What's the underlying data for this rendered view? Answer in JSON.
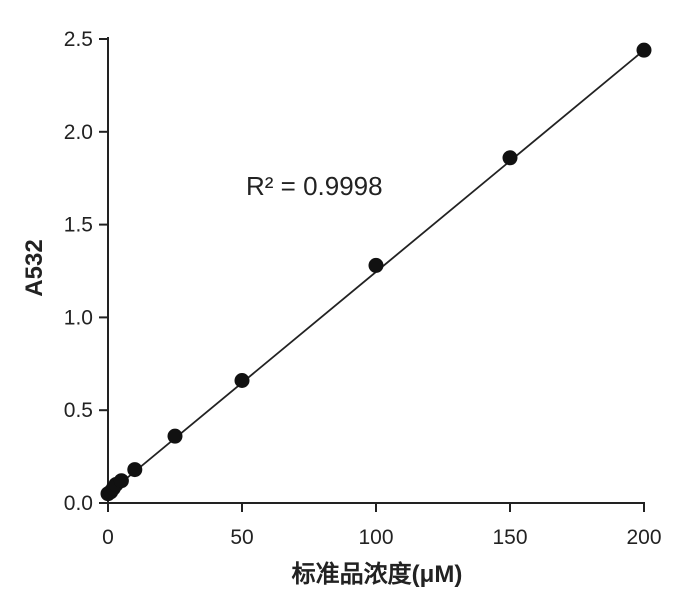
{
  "chart_data": {
    "type": "scatter",
    "title": "",
    "xlabel": "标准品浓度(μM)",
    "ylabel": "A532",
    "xlim": [
      0,
      200
    ],
    "ylim": [
      0,
      2.5
    ],
    "x_ticks": [
      0,
      50,
      100,
      150,
      200
    ],
    "y_ticks": [
      0.0,
      0.5,
      1.0,
      1.5,
      2.0,
      2.5
    ],
    "x_tick_labels": [
      "0",
      "50",
      "100",
      "150",
      "200"
    ],
    "y_tick_labels": [
      "0.0",
      "0.5",
      "1.0",
      "1.5",
      "2.0",
      "2.5"
    ],
    "grid": false,
    "legend": "none",
    "series": [
      {
        "x": [
          0,
          1,
          2,
          3,
          5,
          10,
          25,
          50,
          100,
          150,
          200
        ],
        "y": [
          0.05,
          0.06,
          0.08,
          0.1,
          0.12,
          0.18,
          0.36,
          0.66,
          1.28,
          1.86,
          2.44
        ]
      }
    ],
    "fit_line": {
      "type": "linear",
      "x": [
        0,
        200
      ],
      "y": [
        0.05,
        2.44
      ]
    },
    "annotations": [
      {
        "text": "R² = 0.9998"
      }
    ],
    "colors": {
      "marker": "#111111",
      "line": "#222222",
      "axis": "#222222"
    }
  }
}
